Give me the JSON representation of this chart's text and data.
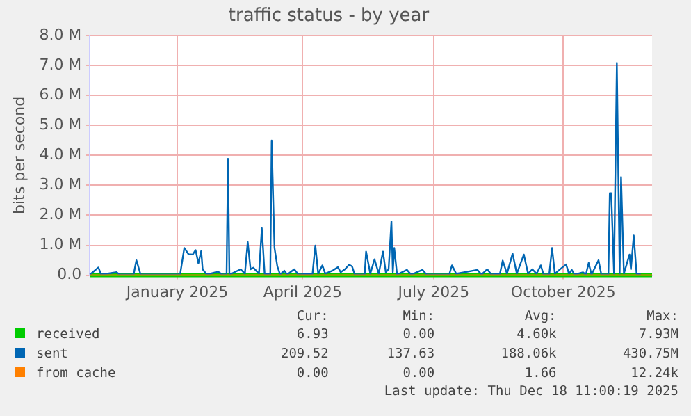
{
  "chart_data": {
    "type": "line",
    "title": "traffic status - by year",
    "ylabel": "bits per second",
    "grid": true,
    "legend": "bottom",
    "marker": "none",
    "line_style": "solid",
    "xlim": [
      "2024-11-14",
      "2025-12-18"
    ],
    "xticks": [
      {
        "value": "2025-01-15",
        "label": "January 2025"
      },
      {
        "value": "2025-04-14",
        "label": "April 2025"
      },
      {
        "value": "2025-07-16",
        "label": "July 2025"
      },
      {
        "value": "2025-10-16",
        "label": "October 2025"
      }
    ],
    "ylim": [
      0,
      8000000
    ],
    "yticks": [
      {
        "value": 0,
        "label": "0.0"
      },
      {
        "value": 1000000,
        "label": "1.0 M"
      },
      {
        "value": 2000000,
        "label": "2.0 M"
      },
      {
        "value": 3000000,
        "label": "3.0 M"
      },
      {
        "value": 4000000,
        "label": "4.0 M"
      },
      {
        "value": 5000000,
        "label": "5.0 M"
      },
      {
        "value": 6000000,
        "label": "6.0 M"
      },
      {
        "value": 7000000,
        "label": "7.0 M"
      },
      {
        "value": 8000000,
        "label": "8.0 M"
      }
    ],
    "series": [
      {
        "name": "received",
        "color": "#00cc00",
        "x": [
          "2024-11-14",
          "2025-12-18"
        ],
        "values": [
          0,
          0
        ]
      },
      {
        "name": "sent",
        "color": "#0066b3",
        "x": [
          "2024-11-14",
          "2024-11-20",
          "2024-11-22",
          "2024-12-03",
          "2024-12-05",
          "2024-12-15",
          "2024-12-17",
          "2024-12-20",
          "2025-01-17",
          "2025-01-20",
          "2025-01-23",
          "2025-01-26",
          "2025-01-28",
          "2025-01-30",
          "2025-02-01",
          "2025-02-02",
          "2025-02-05",
          "2025-02-13",
          "2025-02-16",
          "2025-02-19",
          "2025-02-20",
          "2025-02-21",
          "2025-03-01",
          "2025-03-04",
          "2025-03-06",
          "2025-03-08",
          "2025-03-10",
          "2025-03-14",
          "2025-03-16",
          "2025-03-18",
          "2025-03-22",
          "2025-03-23",
          "2025-03-25",
          "2025-03-27",
          "2025-03-29",
          "2025-04-01",
          "2025-04-03",
          "2025-04-08",
          "2025-04-11",
          "2025-04-21",
          "2025-04-23",
          "2025-04-25",
          "2025-04-28",
          "2025-04-30",
          "2025-05-05",
          "2025-05-09",
          "2025-05-11",
          "2025-05-14",
          "2025-05-17",
          "2025-05-19",
          "2025-05-21",
          "2025-05-28",
          "2025-05-29",
          "2025-06-01",
          "2025-06-04",
          "2025-06-07",
          "2025-06-10",
          "2025-06-12",
          "2025-06-14",
          "2025-06-16",
          "2025-06-17",
          "2025-06-18",
          "2025-06-20",
          "2025-06-27",
          "2025-06-30",
          "2025-07-08",
          "2025-07-11",
          "2025-07-27",
          "2025-07-29",
          "2025-08-01",
          "2025-08-16",
          "2025-08-19",
          "2025-08-23",
          "2025-08-26",
          "2025-09-01",
          "2025-09-03",
          "2025-09-06",
          "2025-09-10",
          "2025-09-13",
          "2025-09-18",
          "2025-09-21",
          "2025-09-24",
          "2025-09-27",
          "2025-09-30",
          "2025-10-02",
          "2025-10-06",
          "2025-10-08",
          "2025-10-10",
          "2025-10-15",
          "2025-10-18",
          "2025-10-20",
          "2025-10-22",
          "2025-10-24",
          "2025-10-30",
          "2025-11-01",
          "2025-11-03",
          "2025-11-05",
          "2025-11-10",
          "2025-11-12",
          "2025-11-17",
          "2025-11-18",
          "2025-11-19",
          "2025-11-21",
          "2025-11-23",
          "2025-11-25",
          "2025-11-26",
          "2025-11-28",
          "2025-12-02",
          "2025-12-03",
          "2025-12-05",
          "2025-12-07",
          "2025-12-10"
        ],
        "values": [
          20000,
          260000,
          20000,
          100000,
          20000,
          20000,
          500000,
          20000,
          20000,
          910000,
          700000,
          690000,
          840000,
          400000,
          810000,
          200000,
          20000,
          120000,
          20000,
          20000,
          3890000,
          20000,
          200000,
          50000,
          1110000,
          200000,
          250000,
          50000,
          1570000,
          50000,
          20000,
          4500000,
          910000,
          300000,
          20000,
          150000,
          20000,
          200000,
          20000,
          50000,
          990000,
          50000,
          330000,
          50000,
          150000,
          270000,
          100000,
          200000,
          350000,
          300000,
          20000,
          20000,
          790000,
          50000,
          530000,
          50000,
          790000,
          100000,
          200000,
          1800000,
          100000,
          910000,
          20000,
          180000,
          20000,
          180000,
          20000,
          20000,
          330000,
          50000,
          180000,
          20000,
          200000,
          20000,
          50000,
          490000,
          50000,
          720000,
          50000,
          690000,
          50000,
          200000,
          50000,
          330000,
          20000,
          20000,
          910000,
          50000,
          250000,
          360000,
          50000,
          180000,
          20000,
          100000,
          20000,
          410000,
          20000,
          500000,
          20000,
          20000,
          2740000,
          2740000,
          50000,
          7090000,
          50000,
          3280000,
          50000,
          690000,
          200000,
          1330000,
          50000,
          20000
        ]
      },
      {
        "name": "from cache",
        "color": "#ff8000",
        "x": [
          "2024-11-14",
          "2025-12-18"
        ],
        "values": [
          0,
          0
        ]
      }
    ],
    "annotations": [
      "Cur:",
      "Min:",
      "Avg:",
      "Max:",
      "6.93",
      "0.00",
      "4.60k",
      "7.93M",
      "209.52",
      "137.63",
      "188.06k",
      "430.75M",
      "0.00",
      "0.00",
      "1.66",
      "12.24k",
      "Last update: Thu Dec 18 11:00:19 2025"
    ]
  }
}
